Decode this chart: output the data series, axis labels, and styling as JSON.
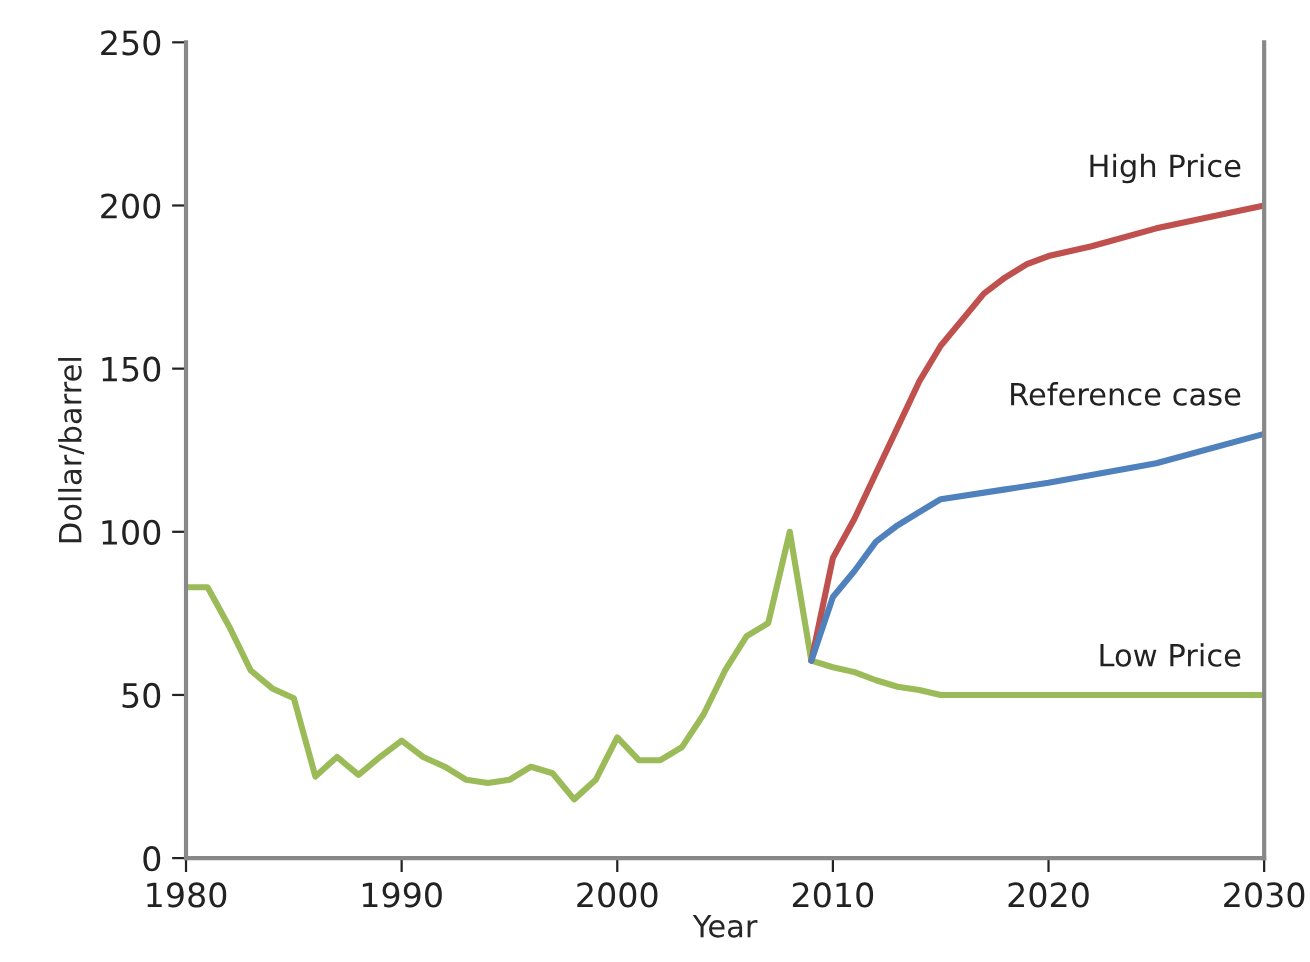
{
  "chart_data": {
    "type": "line",
    "xlabel": "Year",
    "ylabel": "Dollar/barrel",
    "xlim": [
      1980,
      2030
    ],
    "xticks": [
      1980,
      1990,
      2000,
      2010,
      2020,
      2030
    ],
    "ylim": [
      0,
      250
    ],
    "yticks": [
      0,
      50,
      100,
      150,
      200,
      250
    ],
    "grid": false,
    "legend": false,
    "marker": "none",
    "line_style": "solid",
    "series": [
      {
        "name": "Low Price",
        "color": "#9bbb59",
        "x": [
          1980,
          1981,
          1982,
          1983,
          1984,
          1985,
          1986,
          1987,
          1988,
          1989,
          1990,
          1991,
          1992,
          1993,
          1994,
          1995,
          1996,
          1997,
          1998,
          1999,
          2000,
          2001,
          2002,
          2003,
          2004,
          2005,
          2006,
          2007,
          2008,
          2009,
          2010,
          2011,
          2012,
          2013,
          2014,
          2015,
          2030
        ],
        "values": [
          83,
          83,
          71,
          57.5,
          52,
          49,
          25,
          31,
          25.5,
          31,
          36,
          31,
          28,
          24,
          23,
          24,
          28,
          26,
          18,
          24,
          37,
          30,
          30,
          34,
          44,
          57.5,
          68,
          72,
          100,
          60.5,
          58.5,
          57,
          54.5,
          52.5,
          51.5,
          50,
          50
        ]
      },
      {
        "name": "High Price",
        "color": "#c0504d",
        "x": [
          2009,
          2010,
          2011,
          2012,
          2013,
          2014,
          2015,
          2016,
          2017,
          2018,
          2019,
          2020,
          2022,
          2025,
          2030
        ],
        "values": [
          60.5,
          92,
          104,
          118,
          132,
          146,
          157,
          165,
          173,
          178,
          182,
          184.5,
          187.5,
          193,
          200
        ]
      },
      {
        "name": "Reference case",
        "color": "#4f81bd",
        "x": [
          2009,
          2010,
          2011,
          2012,
          2013,
          2014,
          2015,
          2018,
          2020,
          2025,
          2030
        ],
        "values": [
          60.5,
          80,
          88,
          97,
          102,
          106,
          110,
          113,
          115,
          121,
          130
        ]
      }
    ]
  }
}
